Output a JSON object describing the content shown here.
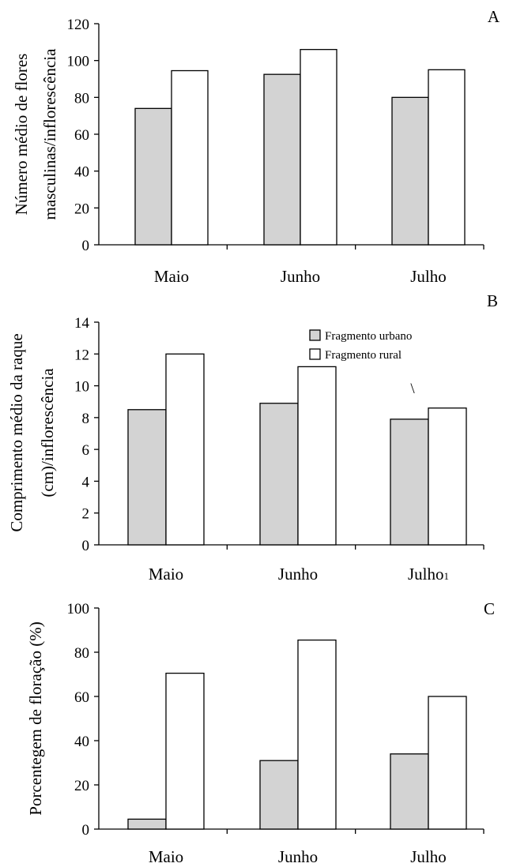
{
  "chart_data": [
    {
      "type": "bar",
      "panel_label": "A",
      "ylabel_lines": [
        "Número médio de flores",
        "masculinas/inflorescência"
      ],
      "categories": [
        "Maio",
        "Junho",
        "Julho"
      ],
      "ylim": [
        0,
        120
      ],
      "yticks": [
        0,
        20,
        40,
        60,
        80,
        100,
        120
      ],
      "series": [
        {
          "name": "Fragmento urbano",
          "color": "#d3d3d3",
          "values": [
            74,
            92.5,
            80
          ]
        },
        {
          "name": "Fragmento rural",
          "color": "#ffffff",
          "values": [
            94.5,
            106,
            95
          ]
        }
      ],
      "legend": null,
      "grid": false
    },
    {
      "type": "bar",
      "panel_label": "B",
      "ylabel_lines": [
        "Comprimento médio da raque",
        "(cm)/inflorescência"
      ],
      "categories": [
        "Maio",
        "Junho",
        "Julho"
      ],
      "category_superscripts": [
        "",
        "",
        "1"
      ],
      "annotation": "\\",
      "ylim": [
        0,
        14
      ],
      "yticks": [
        0,
        2,
        4,
        6,
        8,
        10,
        12,
        14
      ],
      "series": [
        {
          "name": "Fragmento urbano",
          "color": "#d3d3d3",
          "values": [
            8.5,
            8.9,
            7.9
          ]
        },
        {
          "name": "Fragmento rural",
          "color": "#ffffff",
          "values": [
            12,
            11.2,
            8.6
          ]
        }
      ],
      "legend": {
        "placement": "top-right",
        "entries": [
          "Fragmento urbano",
          "Fragmento rural"
        ]
      },
      "grid": false
    },
    {
      "type": "bar",
      "panel_label": "C",
      "ylabel_lines": [
        "Porcentegem de floração (%)"
      ],
      "categories": [
        "Maio",
        "Junho",
        "Julho"
      ],
      "ylim": [
        0,
        100
      ],
      "yticks": [
        0,
        20,
        40,
        60,
        80,
        100
      ],
      "series": [
        {
          "name": "Fragmento urbano",
          "color": "#d3d3d3",
          "values": [
            4.5,
            31,
            34
          ]
        },
        {
          "name": "Fragmento rural",
          "color": "#ffffff",
          "values": [
            70.5,
            85.5,
            60
          ]
        }
      ],
      "legend": null,
      "grid": false
    }
  ]
}
